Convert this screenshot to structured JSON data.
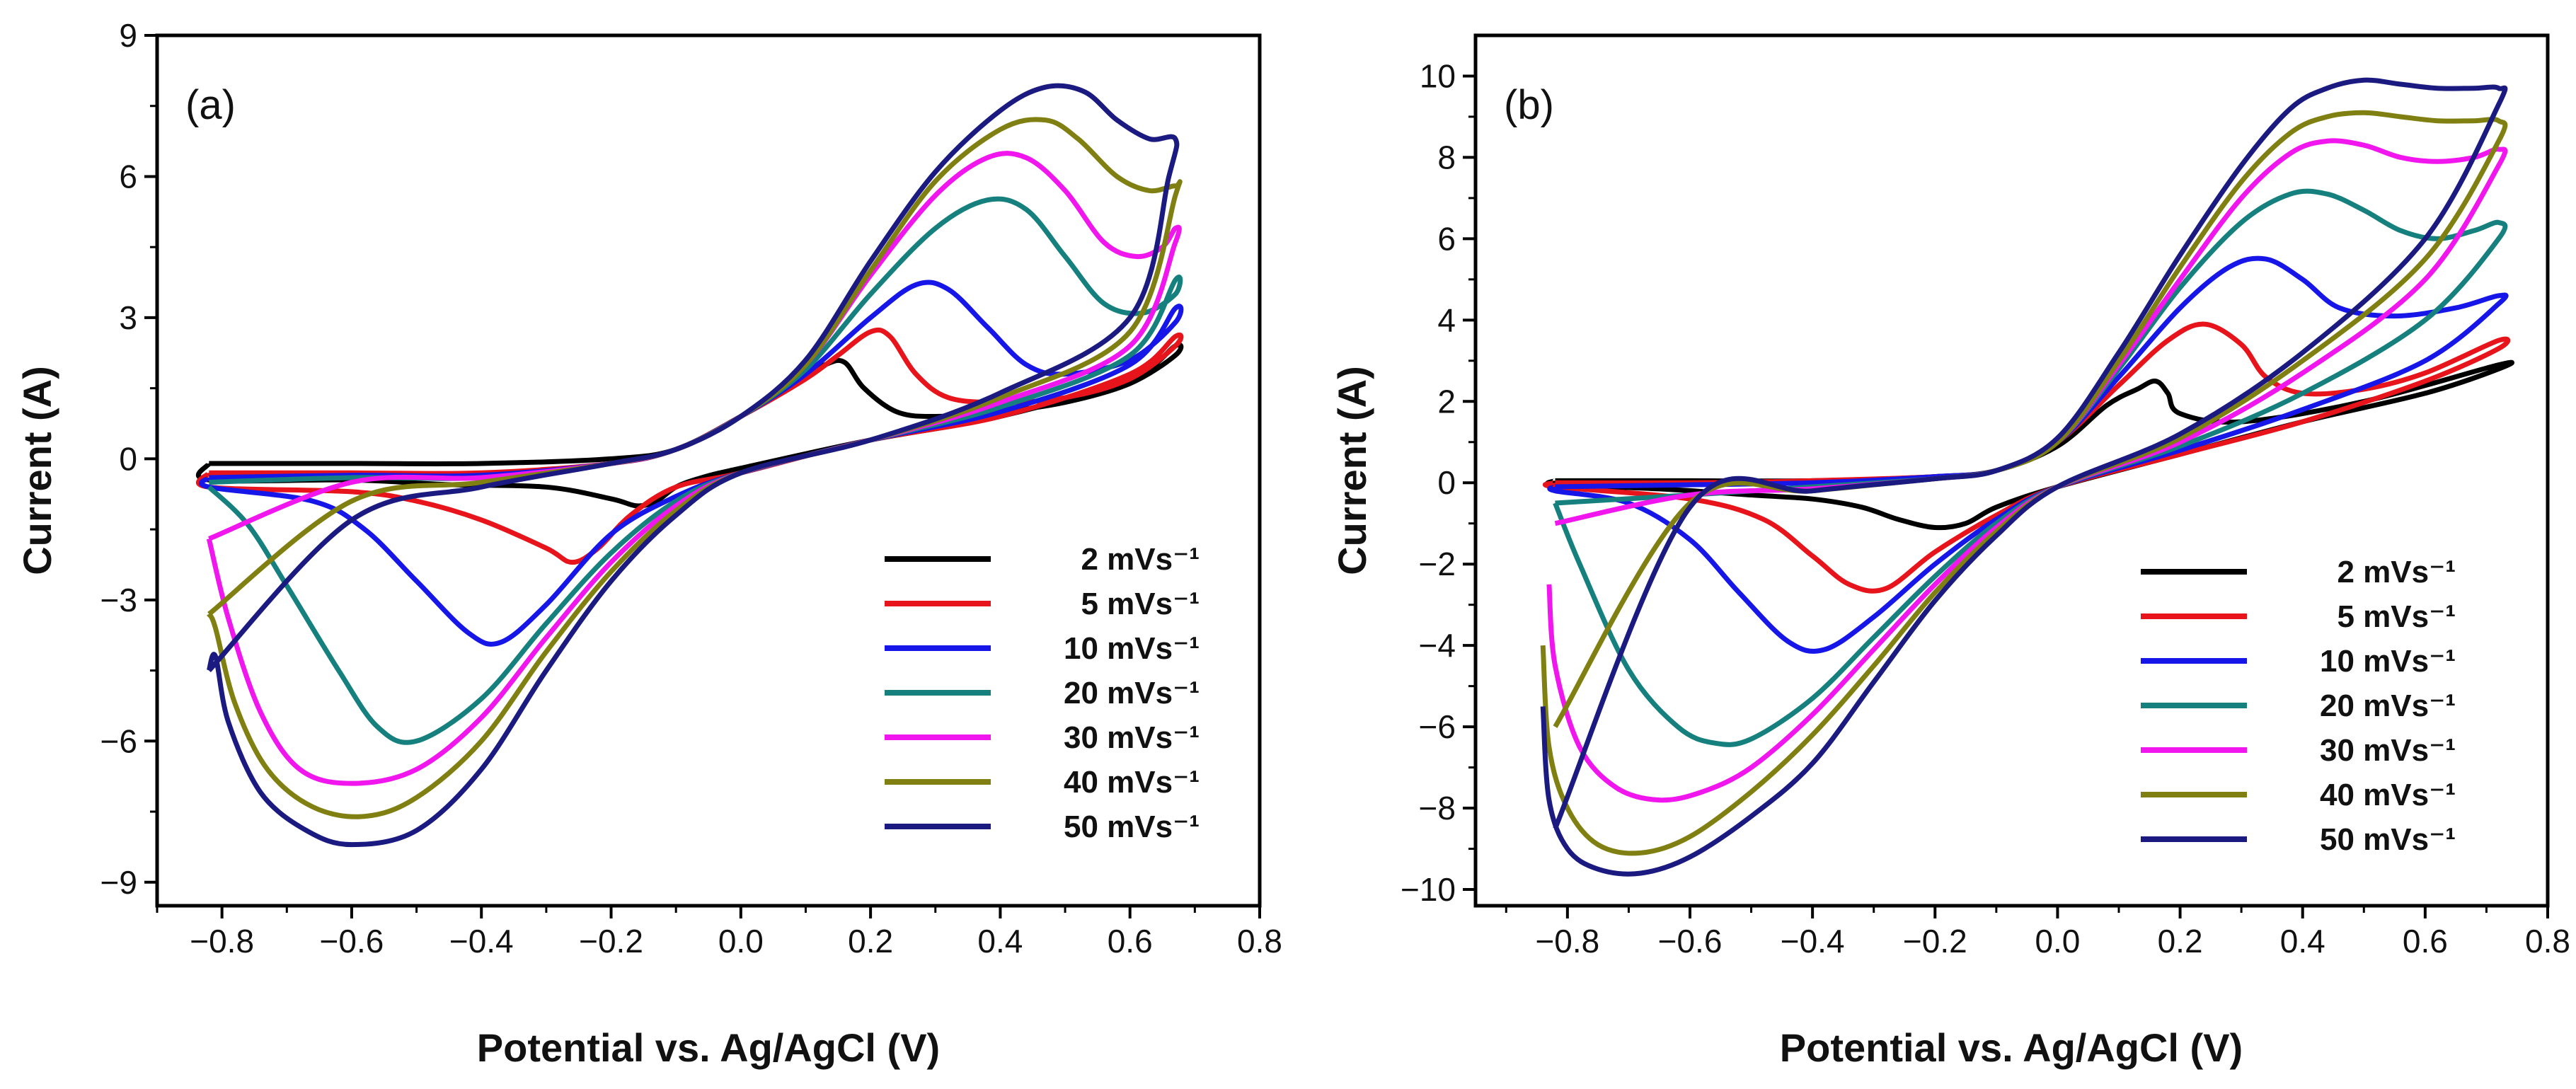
{
  "chart_data": [
    {
      "type": "line",
      "panel_label": "(a)",
      "xlabel": "Potential vs. Ag/AgCl (V)",
      "ylabel": "Current (A)",
      "xlim": [
        -0.9,
        0.8
      ],
      "ylim": [
        -9.5,
        9
      ],
      "xticks": [
        -0.8,
        -0.6,
        -0.4,
        -0.2,
        0.0,
        0.2,
        0.4,
        0.6,
        0.8
      ],
      "xtick_labels": [
        "−0.8",
        "−0.6",
        "−0.4",
        "−0.2",
        "0.0",
        "0.2",
        "0.4",
        "0.6",
        "0.8"
      ],
      "yticks": [
        -9,
        -6,
        -3,
        0,
        3,
        6,
        9
      ],
      "ytick_labels": [
        "−9",
        "−6",
        "−3",
        "0",
        "3",
        "6",
        "9"
      ],
      "legend_position": "bottom-right",
      "series": [
        {
          "name": "2 mVs⁻¹",
          "color": "#000000",
          "x": [
            -0.82,
            -0.6,
            -0.4,
            -0.2,
            -0.1,
            0.0,
            0.08,
            0.13,
            0.16,
            0.19,
            0.24,
            0.3,
            0.4,
            0.5,
            0.6,
            0.67,
            0.67,
            0.6,
            0.4,
            0.2,
            0.0,
            -0.06,
            -0.1,
            -0.13,
            -0.16,
            -0.2,
            -0.3,
            -0.45,
            -0.6,
            -0.82,
            -0.82
          ],
          "y": [
            -0.1,
            -0.1,
            -0.1,
            0.0,
            0.2,
            0.9,
            1.6,
            2.0,
            2.05,
            1.5,
            1.0,
            0.9,
            1.0,
            1.2,
            1.6,
            2.2,
            2.4,
            1.7,
            0.9,
            0.4,
            -0.2,
            -0.4,
            -0.6,
            -0.9,
            -1.0,
            -0.85,
            -0.6,
            -0.55,
            -0.45,
            -0.45,
            -0.1
          ]
        },
        {
          "name": "5 mVs⁻¹",
          "color": "#e8141b",
          "x": [
            -0.82,
            -0.6,
            -0.4,
            -0.2,
            -0.1,
            0.0,
            0.1,
            0.15,
            0.2,
            0.23,
            0.27,
            0.32,
            0.4,
            0.5,
            0.6,
            0.67,
            0.67,
            0.6,
            0.4,
            0.2,
            0.0,
            -0.1,
            -0.17,
            -0.22,
            -0.26,
            -0.3,
            -0.4,
            -0.5,
            -0.6,
            -0.82,
            -0.82
          ],
          "y": [
            -0.3,
            -0.3,
            -0.3,
            -0.1,
            0.2,
            0.9,
            1.7,
            2.2,
            2.7,
            2.6,
            1.8,
            1.3,
            1.2,
            1.3,
            1.7,
            2.4,
            2.6,
            1.8,
            0.9,
            0.4,
            -0.3,
            -0.6,
            -1.2,
            -1.9,
            -2.2,
            -1.9,
            -1.3,
            -0.9,
            -0.7,
            -0.6,
            -0.3
          ]
        },
        {
          "name": "10 mVs⁻¹",
          "color": "#1616e8",
          "x": [
            -0.82,
            -0.6,
            -0.4,
            -0.2,
            -0.1,
            0.0,
            0.1,
            0.2,
            0.27,
            0.32,
            0.38,
            0.44,
            0.5,
            0.6,
            0.67,
            0.67,
            0.6,
            0.4,
            0.2,
            0.0,
            -0.1,
            -0.2,
            -0.3,
            -0.37,
            -0.42,
            -0.5,
            -0.58,
            -0.66,
            -0.82,
            -0.82
          ],
          "y": [
            -0.4,
            -0.35,
            -0.35,
            -0.1,
            0.2,
            0.9,
            1.8,
            3.0,
            3.7,
            3.6,
            2.8,
            2.0,
            1.8,
            2.1,
            2.9,
            3.2,
            2.0,
            1.0,
            0.4,
            -0.3,
            -0.8,
            -1.6,
            -3.1,
            -3.9,
            -3.7,
            -2.6,
            -1.5,
            -0.9,
            -0.6,
            -0.4
          ]
        },
        {
          "name": "20 mVs⁻¹",
          "color": "#15807d",
          "x": [
            -0.82,
            -0.6,
            -0.4,
            -0.2,
            -0.1,
            0.0,
            0.1,
            0.2,
            0.3,
            0.38,
            0.44,
            0.5,
            0.56,
            0.62,
            0.67,
            0.67,
            0.6,
            0.4,
            0.2,
            0.0,
            -0.1,
            -0.2,
            -0.3,
            -0.4,
            -0.5,
            -0.56,
            -0.62,
            -0.7,
            -0.76,
            -0.82
          ],
          "y": [
            -0.5,
            -0.4,
            -0.4,
            -0.1,
            0.2,
            0.9,
            1.9,
            3.5,
            4.9,
            5.5,
            5.3,
            4.3,
            3.3,
            3.1,
            3.5,
            3.8,
            2.2,
            1.1,
            0.4,
            -0.3,
            -0.9,
            -2.0,
            -3.5,
            -5.1,
            -6.0,
            -5.7,
            -4.5,
            -2.7,
            -1.4,
            -0.6
          ]
        },
        {
          "name": "30 mVs⁻¹",
          "color": "#f016ed",
          "x": [
            -0.82,
            -0.6,
            -0.4,
            -0.2,
            -0.1,
            0.0,
            0.1,
            0.2,
            0.3,
            0.38,
            0.44,
            0.5,
            0.56,
            0.61,
            0.65,
            0.67,
            0.67,
            0.6,
            0.4,
            0.2,
            0.0,
            -0.1,
            -0.2,
            -0.3,
            -0.4,
            -0.5,
            -0.6,
            -0.68,
            -0.74,
            -0.79,
            -0.82
          ],
          "y": [
            -1.7,
            -0.5,
            -0.4,
            -0.1,
            0.2,
            0.9,
            2.0,
            3.9,
            5.6,
            6.4,
            6.4,
            5.7,
            4.6,
            4.3,
            4.5,
            4.9,
            4.6,
            2.4,
            1.2,
            0.4,
            -0.3,
            -1.0,
            -2.2,
            -3.8,
            -5.5,
            -6.6,
            -6.9,
            -6.6,
            -5.4,
            -3.4,
            -1.7
          ]
        },
        {
          "name": "40 mVs⁻¹",
          "color": "#808012",
          "x": [
            -0.82,
            -0.6,
            -0.4,
            -0.2,
            -0.1,
            0.0,
            0.1,
            0.2,
            0.3,
            0.4,
            0.47,
            0.52,
            0.58,
            0.63,
            0.67,
            0.67,
            0.6,
            0.4,
            0.2,
            0.0,
            -0.1,
            -0.2,
            -0.3,
            -0.4,
            -0.5,
            -0.58,
            -0.66,
            -0.73,
            -0.78,
            -0.81,
            -0.82
          ],
          "y": [
            -3.3,
            -0.9,
            -0.5,
            -0.1,
            0.2,
            0.9,
            2.0,
            4.0,
            5.9,
            7.0,
            7.2,
            6.8,
            6.0,
            5.7,
            5.8,
            5.6,
            2.7,
            1.3,
            0.4,
            -0.3,
            -1.1,
            -2.4,
            -4.1,
            -6.0,
            -7.2,
            -7.6,
            -7.4,
            -6.6,
            -5.2,
            -3.6,
            -3.3
          ]
        },
        {
          "name": "50 mVs⁻¹",
          "color": "#1a1a80",
          "x": [
            -0.82,
            -0.6,
            -0.4,
            -0.2,
            -0.1,
            0.0,
            0.1,
            0.2,
            0.3,
            0.4,
            0.47,
            0.53,
            0.58,
            0.63,
            0.67,
            0.66,
            0.6,
            0.4,
            0.2,
            0.0,
            -0.1,
            -0.2,
            -0.3,
            -0.4,
            -0.5,
            -0.6,
            -0.67,
            -0.74,
            -0.79,
            -0.81,
            -0.82
          ],
          "y": [
            -4.5,
            -1.3,
            -0.6,
            -0.1,
            0.2,
            0.9,
            2.1,
            4.2,
            6.1,
            7.4,
            7.9,
            7.8,
            7.2,
            6.8,
            6.8,
            6.0,
            3.0,
            1.4,
            0.4,
            -0.3,
            -1.2,
            -2.6,
            -4.5,
            -6.6,
            -7.9,
            -8.2,
            -7.9,
            -7.1,
            -5.6,
            -4.2,
            -4.5
          ]
        }
      ]
    },
    {
      "type": "line",
      "panel_label": "(b)",
      "xlabel": "Potential vs. Ag/AgCl (V)",
      "ylabel": "Current (A)",
      "xlim": [
        -0.95,
        0.8
      ],
      "ylim": [
        -10.4,
        11
      ],
      "xticks": [
        -0.8,
        -0.6,
        -0.4,
        -0.2,
        0.0,
        0.2,
        0.4,
        0.6,
        0.8
      ],
      "xtick_labels": [
        "−0.8",
        "−0.6",
        "−0.4",
        "−0.2",
        "0.0",
        "0.2",
        "0.4",
        "0.6",
        "0.8"
      ],
      "yticks": [
        -10,
        -8,
        -6,
        -4,
        -2,
        0,
        2,
        4,
        6,
        8,
        10
      ],
      "ytick_labels": [
        "−10",
        "−8",
        "−6",
        "−4",
        "−2",
        "0",
        "2",
        "4",
        "6",
        "8",
        "10"
      ],
      "legend_position": "bottom-right",
      "series": [
        {
          "name": "2 mVs⁻¹",
          "color": "#000000",
          "x": [
            -0.82,
            -0.6,
            -0.4,
            -0.2,
            -0.1,
            0.0,
            0.08,
            0.13,
            0.16,
            0.18,
            0.2,
            0.3,
            0.5,
            0.72,
            0.72,
            0.6,
            0.4,
            0.2,
            0.0,
            -0.1,
            -0.15,
            -0.2,
            -0.26,
            -0.32,
            -0.4,
            -0.5,
            -0.65,
            -0.82,
            -0.82
          ],
          "y": [
            0.05,
            0.05,
            0.05,
            0.15,
            0.3,
            0.9,
            1.9,
            2.3,
            2.5,
            2.2,
            1.7,
            1.5,
            2.0,
            2.9,
            2.8,
            2.2,
            1.5,
            0.7,
            -0.1,
            -0.6,
            -1.0,
            -1.1,
            -0.9,
            -0.6,
            -0.4,
            -0.3,
            -0.15,
            -0.05,
            0.05
          ]
        },
        {
          "name": "5 mVs⁻¹",
          "color": "#e8141b",
          "x": [
            -0.82,
            -0.6,
            -0.4,
            -0.2,
            -0.1,
            0.0,
            0.1,
            0.18,
            0.24,
            0.3,
            0.34,
            0.4,
            0.5,
            0.6,
            0.72,
            0.72,
            0.6,
            0.4,
            0.2,
            0.0,
            -0.1,
            -0.2,
            -0.28,
            -0.34,
            -0.4,
            -0.48,
            -0.6,
            -0.82,
            -0.82
          ],
          "y": [
            0.0,
            0.0,
            0.05,
            0.15,
            0.3,
            1.0,
            2.4,
            3.5,
            3.9,
            3.4,
            2.6,
            2.2,
            2.3,
            2.7,
            3.5,
            3.3,
            2.5,
            1.5,
            0.7,
            -0.1,
            -0.8,
            -1.7,
            -2.6,
            -2.5,
            -1.8,
            -0.9,
            -0.4,
            -0.1,
            0.0
          ]
        },
        {
          "name": "10 mVs⁻¹",
          "color": "#1616e8",
          "x": [
            -0.82,
            -0.6,
            -0.4,
            -0.2,
            -0.1,
            0.0,
            0.1,
            0.2,
            0.28,
            0.34,
            0.4,
            0.46,
            0.55,
            0.65,
            0.72,
            0.72,
            0.6,
            0.4,
            0.2,
            0.0,
            -0.1,
            -0.2,
            -0.3,
            -0.38,
            -0.44,
            -0.52,
            -0.6,
            -0.7,
            -0.82,
            -0.82
          ],
          "y": [
            -0.1,
            -0.05,
            0.0,
            0.15,
            0.3,
            1.0,
            2.6,
            4.3,
            5.3,
            5.5,
            5.0,
            4.3,
            4.1,
            4.3,
            4.6,
            4.4,
            3.0,
            1.8,
            0.8,
            -0.1,
            -0.9,
            -2.0,
            -3.3,
            -4.1,
            -3.9,
            -2.7,
            -1.4,
            -0.5,
            -0.2,
            -0.1
          ]
        },
        {
          "name": "20 mVs⁻¹",
          "color": "#15807d",
          "x": [
            -0.82,
            -0.6,
            -0.4,
            -0.2,
            -0.1,
            0.0,
            0.1,
            0.2,
            0.3,
            0.38,
            0.44,
            0.5,
            0.56,
            0.62,
            0.68,
            0.72,
            0.72,
            0.6,
            0.4,
            0.2,
            0.0,
            -0.1,
            -0.2,
            -0.3,
            -0.4,
            -0.5,
            -0.56,
            -0.62,
            -0.7,
            -0.78,
            -0.82
          ],
          "y": [
            -0.5,
            -0.3,
            -0.1,
            0.1,
            0.3,
            1.0,
            2.8,
            4.8,
            6.4,
            7.1,
            7.1,
            6.7,
            6.2,
            6.0,
            6.2,
            6.4,
            6.0,
            4.0,
            2.2,
            0.9,
            -0.1,
            -1.0,
            -2.3,
            -3.8,
            -5.3,
            -6.3,
            -6.4,
            -6.0,
            -4.6,
            -2.0,
            -0.5
          ]
        },
        {
          "name": "30 mVs⁻¹",
          "color": "#f016ed",
          "x": [
            -0.82,
            -0.6,
            -0.4,
            -0.2,
            -0.1,
            0.0,
            0.1,
            0.2,
            0.3,
            0.38,
            0.44,
            0.5,
            0.56,
            0.62,
            0.68,
            0.72,
            0.72,
            0.6,
            0.4,
            0.2,
            0.0,
            -0.1,
            -0.2,
            -0.3,
            -0.4,
            -0.5,
            -0.58,
            -0.65,
            -0.72,
            -0.78,
            -0.82,
            -0.83
          ],
          "y": [
            -1.0,
            -0.3,
            -0.15,
            0.1,
            0.3,
            1.0,
            2.9,
            5.0,
            7.0,
            8.1,
            8.4,
            8.3,
            8.0,
            7.9,
            8.0,
            8.2,
            7.8,
            5.0,
            2.7,
            1.0,
            -0.1,
            -1.1,
            -2.5,
            -4.1,
            -5.7,
            -7.0,
            -7.6,
            -7.8,
            -7.5,
            -6.5,
            -4.5,
            -2.5
          ]
        },
        {
          "name": "40 mVs⁻¹",
          "color": "#808012",
          "x": [
            -0.82,
            -0.6,
            -0.4,
            -0.2,
            -0.1,
            0.0,
            0.1,
            0.2,
            0.3,
            0.38,
            0.44,
            0.5,
            0.56,
            0.62,
            0.68,
            0.72,
            0.72,
            0.6,
            0.4,
            0.2,
            0.0,
            -0.1,
            -0.2,
            -0.3,
            -0.4,
            -0.5,
            -0.6,
            -0.68,
            -0.75,
            -0.8,
            -0.83,
            -0.84
          ],
          "y": [
            -6.0,
            -0.5,
            -0.2,
            0.1,
            0.3,
            1.0,
            3.0,
            5.3,
            7.4,
            8.6,
            9.0,
            9.1,
            9.0,
            8.9,
            8.9,
            8.9,
            8.4,
            5.5,
            3.0,
            1.1,
            -0.1,
            -1.2,
            -2.7,
            -4.5,
            -6.2,
            -7.6,
            -8.7,
            -9.1,
            -8.9,
            -8.0,
            -6.5,
            -4.0
          ]
        },
        {
          "name": "50 mVs⁻¹",
          "color": "#1a1a80",
          "x": [
            -0.82,
            -0.6,
            -0.4,
            -0.2,
            -0.1,
            0.0,
            0.1,
            0.2,
            0.3,
            0.38,
            0.44,
            0.5,
            0.56,
            0.62,
            0.68,
            0.72,
            0.72,
            0.6,
            0.4,
            0.2,
            0.0,
            -0.1,
            -0.2,
            -0.3,
            -0.4,
            -0.5,
            -0.6,
            -0.68,
            -0.75,
            -0.8,
            -0.83,
            -0.84
          ],
          "y": [
            -8.5,
            -0.6,
            -0.2,
            0.1,
            0.3,
            1.1,
            3.2,
            5.6,
            7.8,
            9.2,
            9.7,
            9.9,
            9.8,
            9.7,
            9.7,
            9.7,
            9.3,
            6.0,
            3.2,
            1.2,
            -0.1,
            -1.3,
            -2.9,
            -4.9,
            -6.9,
            -8.2,
            -9.2,
            -9.6,
            -9.5,
            -9.0,
            -7.8,
            -5.5
          ]
        }
      ]
    }
  ]
}
